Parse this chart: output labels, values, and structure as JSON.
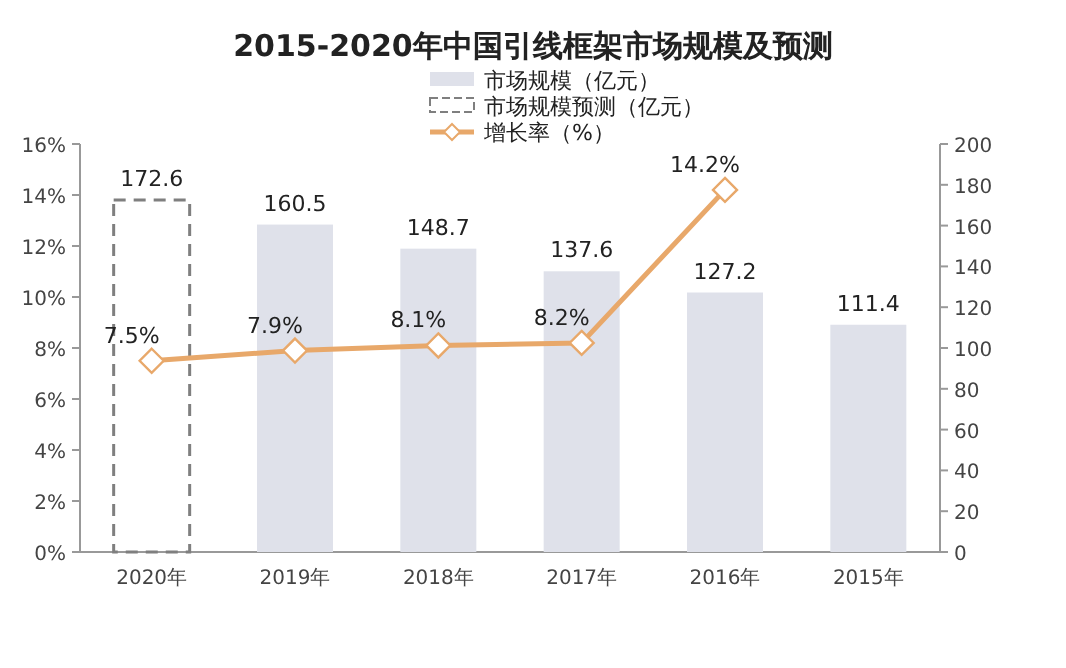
{
  "chart_data": {
    "type": "bar",
    "title": "2015-2020年中国引线框架市场规模及预测",
    "categories": [
      "2020年",
      "2019年",
      "2018年",
      "2017年",
      "2016年",
      "2015年"
    ],
    "series": [
      {
        "name": "市场规模（亿元）",
        "axis": "y2",
        "color": "#dfe1ea",
        "values": [
          null,
          160.5,
          148.7,
          137.6,
          127.2,
          111.4
        ],
        "value_labels": [
          null,
          "160.5",
          "148.7",
          "137.6",
          "127.2",
          "111.4"
        ]
      },
      {
        "name": "市场规模预测（亿元）",
        "axis": "y2",
        "color": "#7f7f7f",
        "line_style": "dashed",
        "values": [
          172.6,
          null,
          null,
          null,
          null,
          null
        ],
        "value_labels": [
          "172.6",
          null,
          null,
          null,
          null,
          null
        ]
      },
      {
        "name": "增长率（%）",
        "type": "line",
        "axis": "y",
        "color": "#e8a86a",
        "marker": "diamond",
        "values": [
          7.5,
          7.9,
          8.1,
          8.2,
          14.2,
          null
        ],
        "value_labels": [
          "7.5%",
          "7.9%",
          "8.1%",
          "8.2%",
          "14.2%",
          null
        ]
      }
    ],
    "ylim": [
      0,
      16
    ],
    "yticks": [
      {
        "value": 0,
        "label": "0%"
      },
      {
        "value": 2,
        "label": "2%"
      },
      {
        "value": 4,
        "label": "4%"
      },
      {
        "value": 6,
        "label": "6%"
      },
      {
        "value": 8,
        "label": "8%"
      },
      {
        "value": 10,
        "label": "10%"
      },
      {
        "value": 12,
        "label": "12%"
      },
      {
        "value": 14,
        "label": "14%"
      },
      {
        "value": 16,
        "label": "16%"
      }
    ],
    "y2lim": [
      0,
      200
    ],
    "y2ticks": [
      0,
      20,
      40,
      60,
      80,
      100,
      120,
      140,
      160,
      180,
      200
    ],
    "legend": "top",
    "grid": false
  }
}
